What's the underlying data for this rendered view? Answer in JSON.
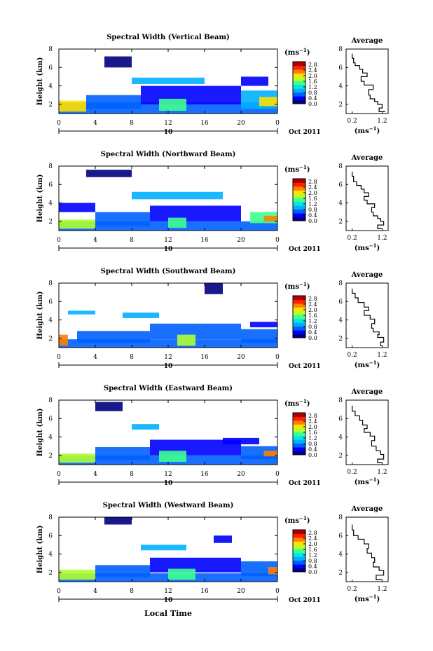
{
  "figure": {
    "x_axis_label": "Local Time",
    "date_label": "Oct 2011",
    "day_label": "10",
    "colorbar_unit": "(ms",
    "colorbar_unit_exp": "−1",
    "colorbar_unit_close": ")",
    "colors": {
      "colormap": [
        "#000080",
        "#0000ff",
        "#0060ff",
        "#00b0ff",
        "#00e8e0",
        "#40ff90",
        "#b0ff30",
        "#ffe000",
        "#ff8000",
        "#ff2000",
        "#b00000"
      ]
    }
  },
  "chart_data": [
    {
      "type": "heatmap",
      "title": "Spectral Width (Vertical Beam)",
      "ylabel": "Height (km)",
      "x_ticks": [
        "0",
        "4",
        "8",
        "12",
        "16",
        "20",
        "0"
      ],
      "y_ticks": [
        "2",
        "4",
        "6",
        "8"
      ],
      "xlim": [
        0,
        24
      ],
      "ylim": [
        1,
        8
      ],
      "colorbar": {
        "ticks": [
          "0.0",
          "0.4",
          "0.8",
          "1.2",
          "1.6",
          "2.0",
          "2.4",
          "2.8"
        ],
        "range": [
          0,
          3.0
        ]
      },
      "regions": [
        {
          "x0": 0,
          "x1": 24,
          "y0": 1,
          "y1": 2.2,
          "value": 0.6
        },
        {
          "x0": 0,
          "x1": 3,
          "y0": 1.2,
          "y1": 2.4,
          "value": 2.0
        },
        {
          "x0": 3,
          "x1": 9,
          "y0": 1.5,
          "y1": 3.0,
          "value": 0.7
        },
        {
          "x0": 9,
          "x1": 20,
          "y0": 2.0,
          "y1": 4.0,
          "value": 0.5
        },
        {
          "x0": 11,
          "x1": 14,
          "y0": 1.3,
          "y1": 2.6,
          "value": 1.5
        },
        {
          "x0": 20,
          "x1": 24,
          "y0": 1.5,
          "y1": 3.5,
          "value": 0.9
        },
        {
          "x0": 22,
          "x1": 24,
          "y0": 1.8,
          "y1": 2.8,
          "value": 2.0
        },
        {
          "x0": 5,
          "x1": 8,
          "y0": 6.0,
          "y1": 7.2,
          "value": 0.2
        },
        {
          "x0": 8,
          "x1": 16,
          "y0": 4.2,
          "y1": 4.9,
          "value": 1.0
        },
        {
          "x0": 20,
          "x1": 23,
          "y0": 4.0,
          "y1": 5.0,
          "value": 0.5
        }
      ]
    },
    {
      "type": "line",
      "title": "Average",
      "xlabel": "(ms",
      "xlabel_exp": "−1",
      "xlabel_close": ")",
      "x_ticks": [
        "0.2",
        "1.2"
      ],
      "y_ticks": [
        "2",
        "4",
        "6",
        "8"
      ],
      "xlim": [
        0,
        1.4
      ],
      "ylim": [
        1,
        8
      ],
      "x": [
        0.2,
        0.25,
        0.3,
        0.45,
        0.55,
        0.7,
        0.5,
        0.6,
        0.9,
        0.75,
        0.8,
        0.95,
        1.05,
        1.2,
        1.1,
        1.3
      ],
      "y": [
        7.5,
        7.0,
        6.5,
        6.2,
        5.8,
        5.4,
        5.0,
        4.5,
        4.1,
        3.6,
        3.0,
        2.6,
        2.3,
        2.0,
        1.6,
        1.2
      ]
    },
    {
      "type": "heatmap",
      "title": "Spectral Width (Northward Beam)",
      "ylabel": "Height (km)",
      "x_ticks": [
        "0",
        "4",
        "8",
        "12",
        "16",
        "20",
        "0"
      ],
      "y_ticks": [
        "2",
        "4",
        "6",
        "8"
      ],
      "xlim": [
        0,
        24
      ],
      "ylim": [
        1,
        8
      ],
      "colorbar": {
        "ticks": [
          "0.0",
          "0.4",
          "0.8",
          "1.2",
          "1.6",
          "2.0",
          "2.4",
          "2.8"
        ],
        "range": [
          0,
          3.0
        ]
      },
      "regions": [
        {
          "x0": 0,
          "x1": 24,
          "y0": 1,
          "y1": 2.0,
          "value": 0.6
        },
        {
          "x0": 0,
          "x1": 4,
          "y0": 1.2,
          "y1": 2.2,
          "value": 1.8
        },
        {
          "x0": 4,
          "x1": 10,
          "y0": 1.5,
          "y1": 3.0,
          "value": 0.8
        },
        {
          "x0": 10,
          "x1": 20,
          "y0": 2.0,
          "y1": 3.7,
          "value": 0.5
        },
        {
          "x0": 12,
          "x1": 14,
          "y0": 1.3,
          "y1": 2.4,
          "value": 1.6
        },
        {
          "x0": 21,
          "x1": 24,
          "y0": 1.8,
          "y1": 3.0,
          "value": 1.4
        },
        {
          "x0": 22.5,
          "x1": 24,
          "y0": 2.0,
          "y1": 2.6,
          "value": 2.4
        },
        {
          "x0": 3,
          "x1": 8,
          "y0": 6.8,
          "y1": 7.6,
          "value": 0.2
        },
        {
          "x0": 8,
          "x1": 18,
          "y0": 4.4,
          "y1": 5.2,
          "value": 0.9
        },
        {
          "x0": 0,
          "x1": 4,
          "y0": 3.0,
          "y1": 4.0,
          "value": 0.4
        }
      ]
    },
    {
      "type": "line",
      "title": "Average",
      "xlabel": "(ms",
      "xlabel_exp": "−1",
      "xlabel_close": ")",
      "x_ticks": [
        "0.2",
        "1.2"
      ],
      "y_ticks": [
        "2",
        "4",
        "6",
        "8"
      ],
      "xlim": [
        0,
        1.4
      ],
      "ylim": [
        1,
        8
      ],
      "x": [
        0.2,
        0.25,
        0.35,
        0.5,
        0.6,
        0.75,
        0.6,
        0.7,
        0.95,
        0.85,
        0.9,
        1.05,
        1.15,
        1.25,
        1.05,
        1.2
      ],
      "y": [
        7.4,
        6.9,
        6.3,
        5.9,
        5.5,
        5.1,
        4.7,
        4.3,
        3.9,
        3.5,
        3.0,
        2.6,
        2.3,
        2.0,
        1.6,
        1.2
      ]
    },
    {
      "type": "heatmap",
      "title": "Spectral Width (Southward Beam)",
      "ylabel": "Height (km)",
      "x_ticks": [
        "0",
        "4",
        "8",
        "12",
        "16",
        "20",
        "0"
      ],
      "y_ticks": [
        "2",
        "4",
        "6",
        "8"
      ],
      "xlim": [
        0,
        24
      ],
      "ylim": [
        1,
        8
      ],
      "colorbar": {
        "ticks": [
          "0.0",
          "0.4",
          "0.8",
          "1.2",
          "1.6",
          "2.0",
          "2.4",
          "2.8"
        ],
        "range": [
          0,
          3.0
        ]
      },
      "regions": [
        {
          "x0": 0,
          "x1": 24,
          "y0": 1,
          "y1": 1.9,
          "value": 0.6
        },
        {
          "x0": 0,
          "x1": 1,
          "y0": 1.2,
          "y1": 2.4,
          "value": 2.2
        },
        {
          "x0": 2,
          "x1": 10,
          "y0": 1.5,
          "y1": 2.8,
          "value": 0.7
        },
        {
          "x0": 10,
          "x1": 20,
          "y0": 1.9,
          "y1": 3.6,
          "value": 0.6
        },
        {
          "x0": 13,
          "x1": 15,
          "y0": 1.2,
          "y1": 2.4,
          "value": 1.7
        },
        {
          "x0": 20,
          "x1": 24,
          "y0": 1.5,
          "y1": 3.0,
          "value": 0.7
        },
        {
          "x0": 16,
          "x1": 18,
          "y0": 6.8,
          "y1": 8.0,
          "value": 0.2
        },
        {
          "x0": 7,
          "x1": 11,
          "y0": 4.2,
          "y1": 4.8,
          "value": 0.9
        },
        {
          "x0": 21,
          "x1": 24,
          "y0": 3.2,
          "y1": 3.8,
          "value": 0.3
        },
        {
          "x0": 1,
          "x1": 4,
          "y0": 4.6,
          "y1": 5.0,
          "value": 1.0
        }
      ]
    },
    {
      "type": "line",
      "title": "Average",
      "xlabel": "(ms",
      "xlabel_exp": "−1",
      "xlabel_close": ")",
      "x_ticks": [
        "0.2",
        "1.2"
      ],
      "y_ticks": [
        "2",
        "4",
        "6",
        "8"
      ],
      "xlim": [
        0,
        1.4
      ],
      "ylim": [
        1,
        8
      ],
      "x": [
        0.2,
        0.3,
        0.4,
        0.6,
        0.75,
        0.6,
        0.8,
        0.95,
        0.85,
        0.9,
        1.1,
        1.05,
        1.25,
        1.15,
        1.2
      ],
      "y": [
        7.4,
        6.9,
        6.4,
        5.9,
        5.4,
        5.0,
        4.5,
        4.1,
        3.6,
        3.1,
        2.7,
        2.4,
        2.1,
        1.6,
        1.2
      ]
    },
    {
      "type": "heatmap",
      "title": "Spectral Width (Eastward Beam)",
      "ylabel": "Height (km)",
      "x_ticks": [
        "0",
        "4",
        "8",
        "12",
        "16",
        "20",
        "0"
      ],
      "y_ticks": [
        "2",
        "4",
        "6",
        "8"
      ],
      "xlim": [
        0,
        24
      ],
      "ylim": [
        1,
        8
      ],
      "colorbar": {
        "ticks": [
          "0.0",
          "0.4",
          "0.8",
          "1.2",
          "1.6",
          "2.0",
          "2.4",
          "2.8"
        ],
        "range": [
          0,
          3.0
        ]
      },
      "regions": [
        {
          "x0": 0,
          "x1": 24,
          "y0": 1,
          "y1": 2.0,
          "value": 0.6
        },
        {
          "x0": 0,
          "x1": 4,
          "y0": 1.2,
          "y1": 2.2,
          "value": 1.9
        },
        {
          "x0": 4,
          "x1": 10,
          "y0": 1.5,
          "y1": 2.9,
          "value": 0.7
        },
        {
          "x0": 10,
          "x1": 20,
          "y0": 2.0,
          "y1": 3.7,
          "value": 0.5
        },
        {
          "x0": 11,
          "x1": 14,
          "y0": 1.3,
          "y1": 2.5,
          "value": 1.4
        },
        {
          "x0": 20,
          "x1": 24,
          "y0": 1.6,
          "y1": 3.0,
          "value": 0.8
        },
        {
          "x0": 22.5,
          "x1": 24,
          "y0": 1.9,
          "y1": 2.5,
          "value": 2.2
        },
        {
          "x0": 4,
          "x1": 7,
          "y0": 6.8,
          "y1": 7.8,
          "value": 0.2
        },
        {
          "x0": 8,
          "x1": 11,
          "y0": 4.8,
          "y1": 5.4,
          "value": 0.9
        },
        {
          "x0": 18,
          "x1": 22,
          "y0": 3.2,
          "y1": 3.9,
          "value": 0.4
        }
      ]
    },
    {
      "type": "line",
      "title": "Average",
      "xlabel": "(ms",
      "xlabel_exp": "−1",
      "xlabel_close": ")",
      "x_ticks": [
        "0.2",
        "1.2"
      ],
      "y_ticks": [
        "2",
        "4",
        "6",
        "8"
      ],
      "xlim": [
        0,
        1.4
      ],
      "ylim": [
        1,
        8
      ],
      "x": [
        0.2,
        0.3,
        0.45,
        0.55,
        0.7,
        0.6,
        0.8,
        0.95,
        0.85,
        1.0,
        1.15,
        1.25,
        1.05,
        1.2
      ],
      "y": [
        7.4,
        6.8,
        6.3,
        5.8,
        5.3,
        4.9,
        4.5,
        4.1,
        3.6,
        3.0,
        2.5,
        2.1,
        1.6,
        1.2
      ]
    },
    {
      "type": "heatmap",
      "title": "Spectral Width (Westward Beam)",
      "ylabel": "Height (km)",
      "x_ticks": [
        "0",
        "4",
        "8",
        "12",
        "16",
        "20",
        "0"
      ],
      "y_ticks": [
        "2",
        "4",
        "6",
        "8"
      ],
      "xlim": [
        0,
        24
      ],
      "ylim": [
        1,
        8
      ],
      "colorbar": {
        "ticks": [
          "0.0",
          "0.4",
          "0.8",
          "1.2",
          "1.6",
          "2.0",
          "2.4",
          "2.8"
        ],
        "range": [
          0,
          3.0
        ]
      },
      "regions": [
        {
          "x0": 0,
          "x1": 24,
          "y0": 1,
          "y1": 1.9,
          "value": 0.6
        },
        {
          "x0": 0,
          "x1": 4,
          "y0": 1.2,
          "y1": 2.3,
          "value": 1.8
        },
        {
          "x0": 4,
          "x1": 10,
          "y0": 1.5,
          "y1": 2.8,
          "value": 0.7
        },
        {
          "x0": 10,
          "x1": 20,
          "y0": 2.0,
          "y1": 3.6,
          "value": 0.5
        },
        {
          "x0": 12,
          "x1": 15,
          "y0": 1.2,
          "y1": 2.4,
          "value": 1.6
        },
        {
          "x0": 20,
          "x1": 24,
          "y0": 1.6,
          "y1": 3.2,
          "value": 0.8
        },
        {
          "x0": 23,
          "x1": 24,
          "y0": 1.8,
          "y1": 2.6,
          "value": 2.2
        },
        {
          "x0": 5,
          "x1": 8,
          "y0": 7.2,
          "y1": 8.0,
          "value": 0.2
        },
        {
          "x0": 9,
          "x1": 14,
          "y0": 4.4,
          "y1": 5.0,
          "value": 0.9
        },
        {
          "x0": 17,
          "x1": 19,
          "y0": 5.2,
          "y1": 6.0,
          "value": 0.3
        }
      ]
    },
    {
      "type": "line",
      "title": "Average",
      "xlabel": "(ms",
      "xlabel_exp": "−1",
      "xlabel_close": ")",
      "x_ticks": [
        "0.2",
        "1.2"
      ],
      "y_ticks": [
        "2",
        "4",
        "6",
        "8"
      ],
      "xlim": [
        0,
        1.4
      ],
      "ylim": [
        1,
        8
      ],
      "x": [
        0.2,
        0.25,
        0.4,
        0.6,
        0.75,
        0.7,
        0.85,
        0.95,
        0.9,
        1.1,
        1.25,
        1.0,
        1.2
      ],
      "y": [
        7.2,
        6.6,
        6.0,
        5.6,
        5.1,
        4.6,
        4.1,
        3.6,
        3.1,
        2.6,
        2.2,
        1.7,
        1.2
      ]
    }
  ]
}
